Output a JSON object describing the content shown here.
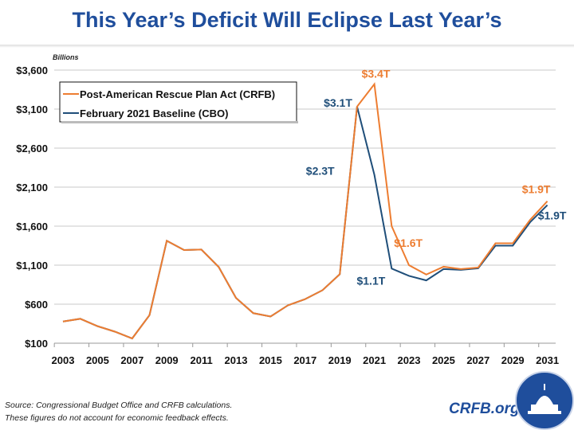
{
  "header": {
    "title": "This Year’s Deficit Will Eclipse Last Year’s"
  },
  "footer": {
    "source": "Source: Congressional Budget Office and CRFB calculations.",
    "note": "These figures do not account for economic feedback effects.",
    "brand": "CRFB.org"
  },
  "chart_data": {
    "type": "line",
    "title": "This Year’s Deficit Will Eclipse Last Year’s",
    "ylabel": "Billions",
    "ylim": [
      100,
      3600
    ],
    "yticks": [
      100,
      600,
      1100,
      1600,
      2100,
      2600,
      3100,
      3600
    ],
    "ytick_labels": [
      "$100",
      "$600",
      "$1,100",
      "$1,600",
      "$2,100",
      "$2,600",
      "$3,100",
      "$3,600"
    ],
    "x": [
      2003,
      2004,
      2005,
      2006,
      2007,
      2008,
      2009,
      2010,
      2011,
      2012,
      2013,
      2014,
      2015,
      2016,
      2017,
      2018,
      2019,
      2020,
      2021,
      2022,
      2023,
      2024,
      2025,
      2026,
      2027,
      2028,
      2029,
      2030,
      2031
    ],
    "xtick_labels": [
      "2003",
      "2005",
      "2007",
      "2009",
      "2011",
      "2013",
      "2015",
      "2017",
      "2019",
      "2021",
      "2023",
      "2025",
      "2027",
      "2029",
      "2031"
    ],
    "grid": true,
    "legend_position": "top-left",
    "series": [
      {
        "name": "Post-American Rescue Plan Act (CRFB)",
        "color": "#ed7d31",
        "values": [
          378,
          413,
          318,
          248,
          161,
          459,
          1413,
          1294,
          1300,
          1077,
          680,
          485,
          442,
          585,
          665,
          779,
          984,
          3132,
          3420,
          1600,
          1100,
          980,
          1080,
          1050,
          1070,
          1380,
          1380,
          1680,
          1920
        ]
      },
      {
        "name": "February 2021 Baseline (CBO)",
        "color": "#1f4e79",
        "values": [
          378,
          413,
          318,
          248,
          161,
          459,
          1413,
          1294,
          1300,
          1077,
          680,
          485,
          442,
          585,
          665,
          779,
          984,
          3132,
          2258,
          1056,
          963,
          905,
          1050,
          1040,
          1060,
          1350,
          1350,
          1650,
          1870
        ]
      }
    ],
    "annotations": [
      {
        "text": "$3.4T",
        "series": 0,
        "year": 2021
      },
      {
        "text": "$1.6T",
        "series": 0,
        "year": 2022
      },
      {
        "text": "$1.9T",
        "series": 0,
        "year": 2031
      },
      {
        "text": "$3.1T",
        "series": 1,
        "year": 2020
      },
      {
        "text": "$2.3T",
        "series": 1,
        "year": 2021
      },
      {
        "text": "$1.1T",
        "series": 1,
        "year": 2022
      },
      {
        "text": "$1.9T",
        "series": 1,
        "year": 2031
      }
    ]
  }
}
